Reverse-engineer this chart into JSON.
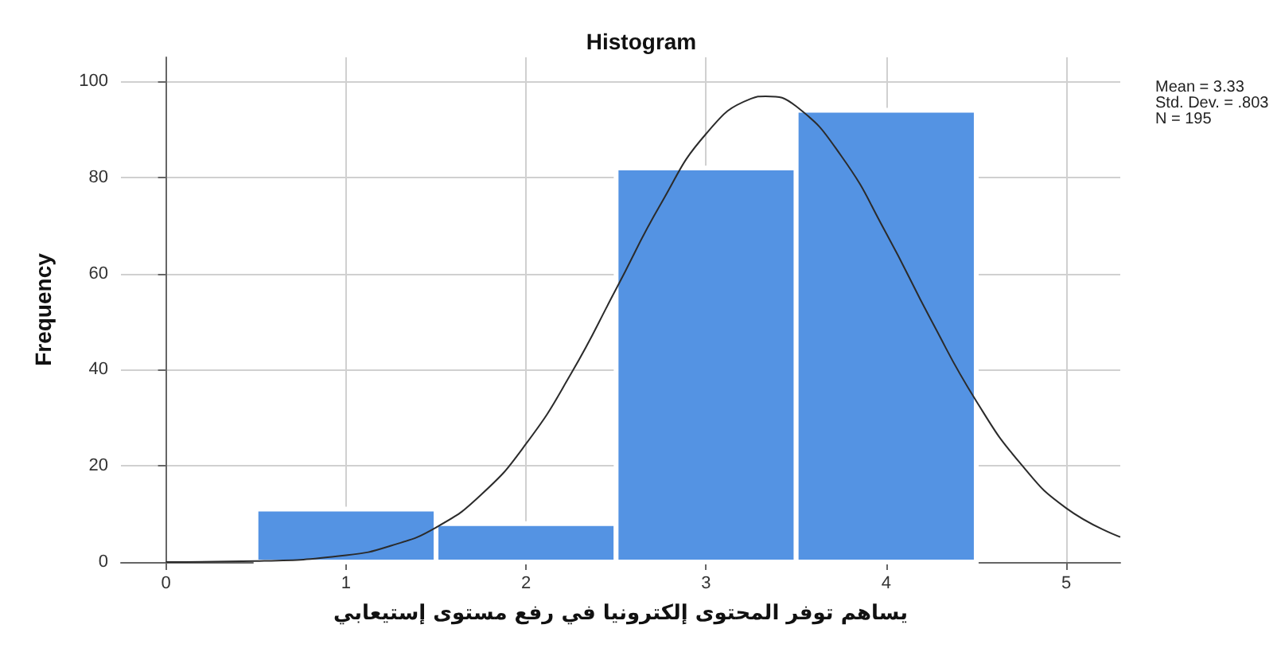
{
  "chart_data": {
    "type": "histogram",
    "title": "Histogram",
    "xlabel": "يساهم توفر المحتوى إلكترونيا في رفع مستوى إستيعابي",
    "ylabel": "Frequency",
    "bins": [
      0.5,
      1.5,
      2.5,
      3.5,
      4.5
    ],
    "values": [
      11,
      8,
      82,
      94
    ],
    "color": "#5493e3",
    "series": [
      {
        "type": "line",
        "color": "#2b2b2b",
        "x": [
          0,
          0.5,
          1,
          1.25,
          1.5,
          1.75,
          2,
          2.25,
          2.5,
          2.75,
          3,
          3.25,
          3.33,
          3.5,
          3.75,
          4,
          4.25,
          4.5,
          4.75,
          5,
          5.3
        ],
        "values": [
          0,
          0.2,
          1.4,
          3.4,
          7.2,
          14,
          24.6,
          39.2,
          56.8,
          74.6,
          89.1,
          96.4,
          96.9,
          94.8,
          84.5,
          68.4,
          50.3,
          33.5,
          20.3,
          11.2,
          5.2
        ]
      }
    ],
    "xlim": [
      -0.25,
      5.3
    ],
    "xticks": [
      0,
      1,
      2,
      3,
      4,
      5
    ],
    "ylim": [
      0,
      105
    ],
    "yticks": [
      0,
      20,
      40,
      60,
      80,
      100
    ],
    "grid": true,
    "annotations": [
      "Mean = 3.33",
      "Std. Dev. = .803",
      "N = 195"
    ]
  }
}
